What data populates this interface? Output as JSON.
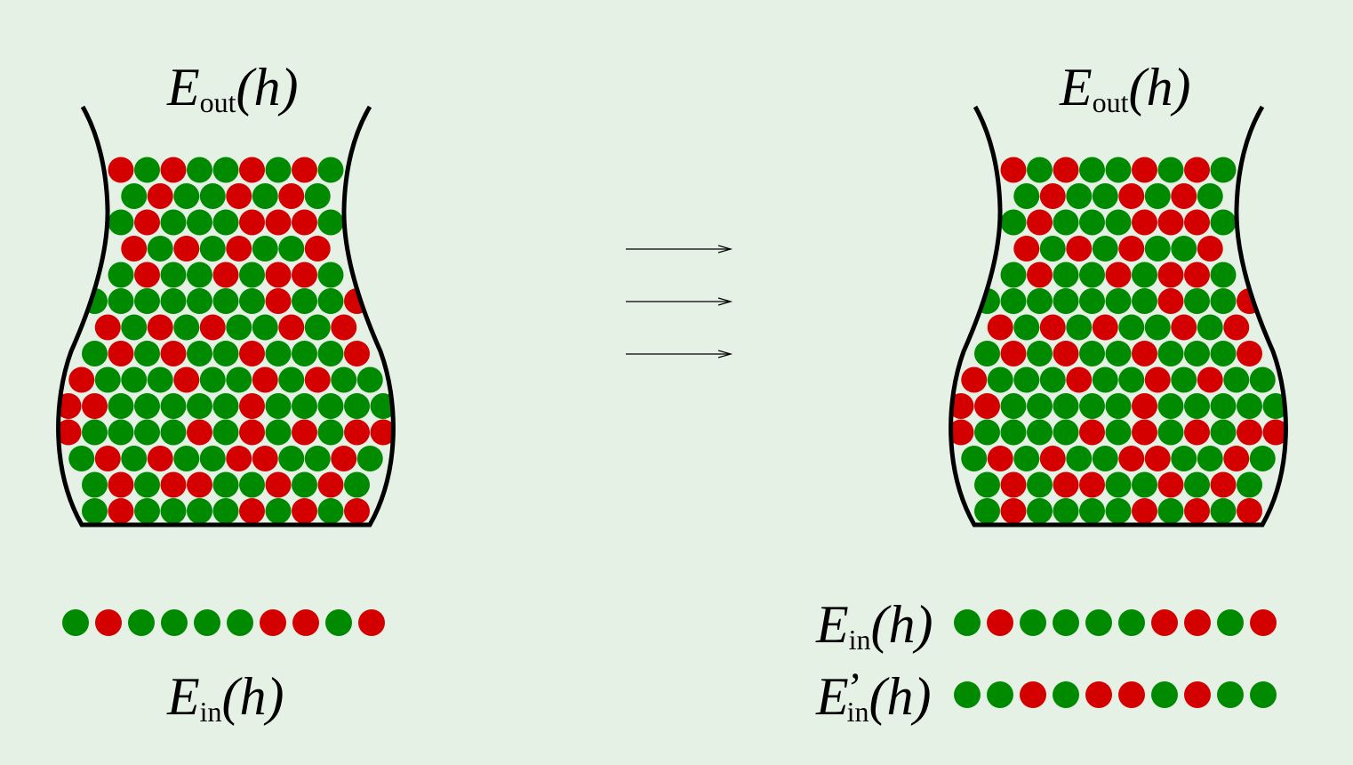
{
  "colors": {
    "background": "#e6f1e6",
    "green": "#008a00",
    "red": "#d40000",
    "outline": "#000000"
  },
  "left_bin": {
    "eout_label": {
      "main": "E",
      "sub": "out",
      "arg": "(h)"
    },
    "sample_label": {
      "main": "E",
      "sub": "in",
      "arg": "(h)"
    },
    "sample": [
      "g",
      "r",
      "g",
      "g",
      "g",
      "g",
      "r",
      "r",
      "g",
      "r"
    ],
    "rows": [
      "rgrggrgrg",
      "grggrgrg",
      "grgggrrrg",
      "rgrgrggr",
      "grggrgrrg",
      "gggggggrggr",
      "rgrgrggrgr",
      "grgrggrgggr",
      "rgggrggrgrgg",
      "rrgggggrggggg",
      "rggggrgrgrgrr",
      "grgrggrrggrg",
      "grgrrggrgrg",
      "grggggrgrgr"
    ]
  },
  "arrows": {
    "count": 3,
    "icon": "right-arrow-icon"
  },
  "right_bin": {
    "eout_label": {
      "main": "E",
      "sub": "out",
      "arg": "(h)"
    },
    "sample_label_1": {
      "main": "E",
      "sub": "in",
      "arg": "(h)"
    },
    "sample_label_2": {
      "main": "E",
      "prime": "’",
      "sub": "in",
      "arg": "(h)"
    },
    "sample_1": [
      "g",
      "r",
      "g",
      "g",
      "g",
      "g",
      "r",
      "r",
      "g",
      "r"
    ],
    "sample_2": [
      "g",
      "g",
      "r",
      "g",
      "r",
      "r",
      "g",
      "r",
      "g",
      "g"
    ],
    "rows": [
      "rgrggrgrg",
      "grggrgrg",
      "grgggrrrg",
      "rgrgrggr",
      "grggrgrrg",
      "gggggggrggr",
      "rgrgrggrgr",
      "grgrggrgggr",
      "rgggrggrgrgg",
      "rrgggggrggggg",
      "rggggrgrgrgrr",
      "grgrggrrggrg",
      "grgrrggrgrg",
      "grggggrgrgr"
    ]
  }
}
